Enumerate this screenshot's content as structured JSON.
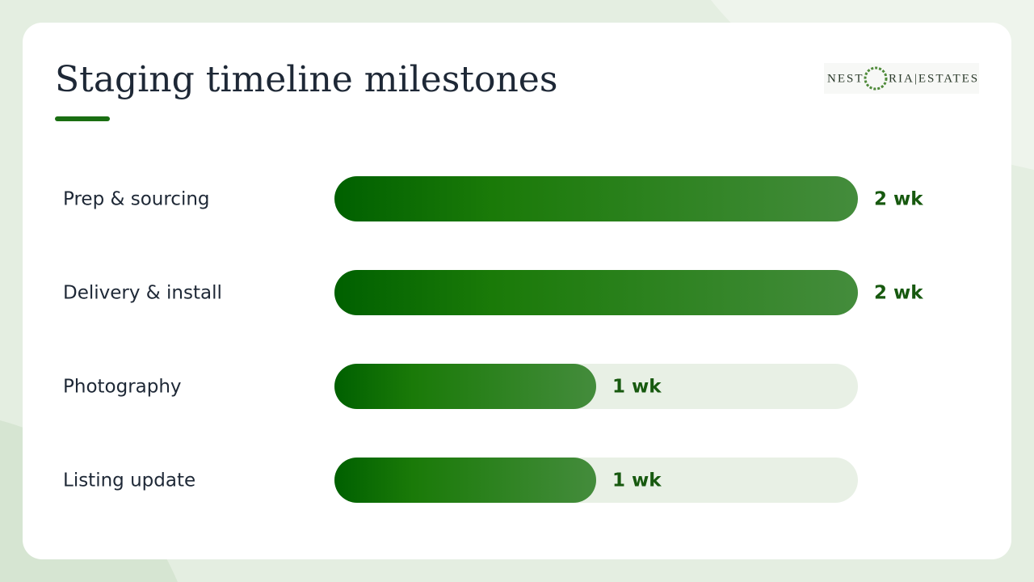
{
  "chart_data": {
    "type": "bar",
    "orientation": "horizontal",
    "title": "Staging timeline milestones",
    "categories": [
      "Prep & sourcing",
      "Delivery & install",
      "Photography",
      "Listing update"
    ],
    "values": [
      2,
      2,
      1,
      1
    ],
    "value_labels": [
      "2 wk",
      "2 wk",
      "1 wk",
      "1 wk"
    ],
    "color": "#1a7a0a",
    "xlim": [
      0,
      2
    ]
  },
  "logo": {
    "left": "NEST",
    "right": "RIA|ESTATES"
  }
}
